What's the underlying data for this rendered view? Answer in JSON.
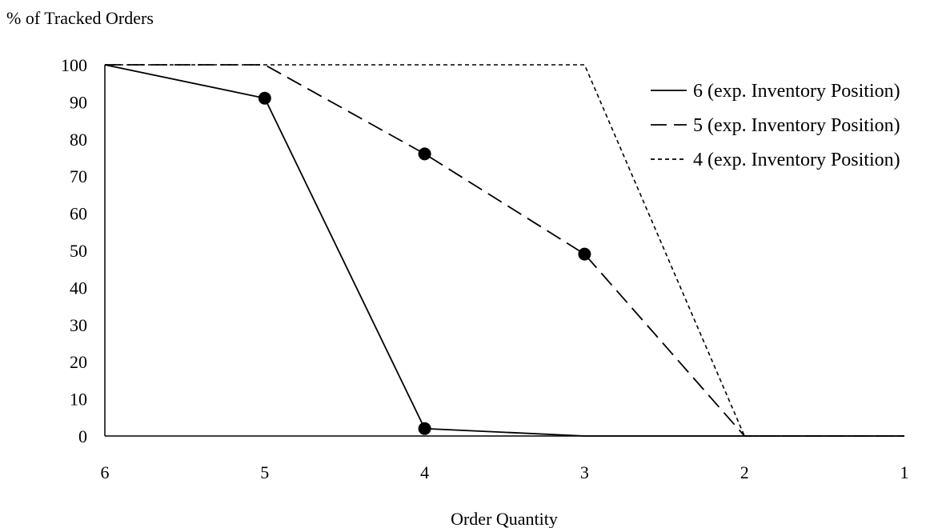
{
  "chart_data": {
    "type": "line",
    "title": "",
    "ylabel": "% of Tracked Orders",
    "xlabel": "Order Quantity",
    "categories": [
      "6",
      "5",
      "4",
      "3",
      "2",
      "1"
    ],
    "ylim": [
      0,
      100
    ],
    "yticks": [
      0,
      10,
      20,
      30,
      40,
      50,
      60,
      70,
      80,
      90,
      100
    ],
    "grid": false,
    "legend_position": "top-right",
    "series": [
      {
        "name": "6 (exp. Inventory Position)",
        "style": "solid",
        "values": [
          100,
          91,
          2,
          0,
          0,
          0
        ],
        "markers": [
          1,
          2
        ]
      },
      {
        "name": "5 (exp. Inventory Position)",
        "style": "long-dash",
        "values": [
          100,
          100,
          76,
          49,
          0,
          0
        ],
        "markers": [
          2,
          3
        ]
      },
      {
        "name": "4 (exp. Inventory Position)",
        "style": "short-dash",
        "values": [
          100,
          100,
          100,
          100,
          0,
          0
        ],
        "markers": []
      }
    ]
  }
}
